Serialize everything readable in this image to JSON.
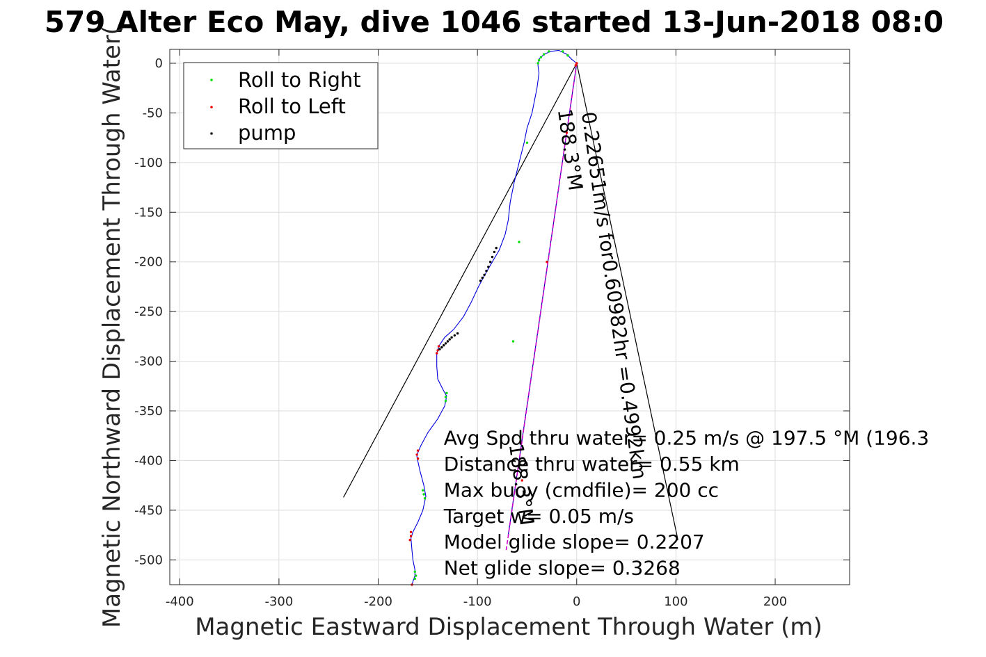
{
  "chart_data": {
    "type": "line",
    "title": "579 Alter Eco May, dive 1046 started 13-Jun-2018 08:0",
    "xlabel": "Magnetic Eastward Displacement Through Water (m)",
    "ylabel": "Magnetic Northward Displacement Through Water(",
    "xlim": [
      -410,
      275
    ],
    "ylim": [
      -525,
      14
    ],
    "xticks": [
      -400,
      -300,
      -200,
      -100,
      0,
      100,
      200
    ],
    "xtick_labels": [
      "-400",
      "-300",
      "-200",
      "-100",
      "0",
      "100",
      "200"
    ],
    "yticks": [
      0,
      -50,
      -100,
      -150,
      -200,
      -250,
      -300,
      -350,
      -400,
      -450,
      -500
    ],
    "ytick_labels": [
      "0",
      "-50",
      "-100",
      "-150",
      "-200",
      "-250",
      "-300",
      "-350",
      "-400",
      "-450",
      "-500"
    ],
    "grid": true,
    "legend": {
      "placement": "top-left",
      "entries": [
        {
          "label": "Roll to Right",
          "color": "#00dd00"
        },
        {
          "label": "Roll to Left",
          "color": "#ee0000"
        },
        {
          "label": "pump",
          "color": "#000000"
        }
      ]
    },
    "track": {
      "color": "#0000dd",
      "points": [
        [
          0,
          0
        ],
        [
          -5,
          4
        ],
        [
          -10,
          9
        ],
        [
          -18,
          13
        ],
        [
          -26,
          12
        ],
        [
          -33,
          9
        ],
        [
          -38,
          4
        ],
        [
          -39,
          -2
        ],
        [
          -38,
          -10
        ],
        [
          -40,
          -25
        ],
        [
          -45,
          -50
        ],
        [
          -50,
          -65
        ],
        [
          -53,
          -80
        ],
        [
          -58,
          -100
        ],
        [
          -63,
          -120
        ],
        [
          -67,
          -140
        ],
        [
          -69,
          -158
        ],
        [
          -72,
          -172
        ],
        [
          -78,
          -188
        ],
        [
          -85,
          -200
        ],
        [
          -92,
          -212
        ],
        [
          -99,
          -225
        ],
        [
          -106,
          -240
        ],
        [
          -114,
          -255
        ],
        [
          -124,
          -268
        ],
        [
          -133,
          -276
        ],
        [
          -139,
          -285
        ],
        [
          -141,
          -292
        ],
        [
          -141,
          -305
        ],
        [
          -140,
          -318
        ],
        [
          -134,
          -330
        ],
        [
          -131,
          -335
        ],
        [
          -133,
          -345
        ],
        [
          -140,
          -358
        ],
        [
          -150,
          -372
        ],
        [
          -157,
          -385
        ],
        [
          -160,
          -392
        ],
        [
          -161,
          -396
        ],
        [
          -158,
          -410
        ],
        [
          -154,
          -425
        ],
        [
          -152,
          -436
        ],
        [
          -155,
          -450
        ],
        [
          -160,
          -462
        ],
        [
          -165,
          -472
        ],
        [
          -167,
          -478
        ],
        [
          -166,
          -490
        ],
        [
          -165,
          -500
        ],
        [
          -163,
          -510
        ],
        [
          -163,
          -516
        ],
        [
          -165,
          -522
        ],
        [
          -166,
          -525
        ]
      ]
    },
    "roll_right_points": [
      [
        -33,
        9
      ],
      [
        -36,
        6
      ],
      [
        -38,
        3
      ],
      [
        -39,
        0
      ],
      [
        -28,
        12
      ],
      [
        -14,
        12
      ],
      [
        -9,
        8
      ],
      [
        -131,
        -332
      ],
      [
        -132,
        -336
      ],
      [
        -132,
        -340
      ],
      [
        -155,
        -430
      ],
      [
        -154,
        -434
      ],
      [
        -153,
        -438
      ],
      [
        -163,
        -512
      ],
      [
        -162,
        -516
      ],
      [
        -163,
        -519
      ],
      [
        -64,
        -280
      ],
      [
        -58,
        -180
      ],
      [
        -50,
        -80
      ]
    ],
    "roll_left_points": [
      [
        0,
        0
      ],
      [
        -1,
        -2
      ],
      [
        -139,
        -285
      ],
      [
        -140,
        -289
      ],
      [
        -141,
        -292
      ],
      [
        -160,
        -390
      ],
      [
        -161,
        -394
      ],
      [
        -160,
        -398
      ],
      [
        -167,
        -472
      ],
      [
        -167,
        -476
      ],
      [
        -168,
        -480
      ],
      [
        -166,
        -525
      ],
      [
        -10,
        -70
      ],
      [
        -30,
        -200
      ],
      [
        -55,
        -420
      ]
    ],
    "pump_points": [
      [
        -81,
        -186
      ],
      [
        -83,
        -190
      ],
      [
        -85,
        -195
      ],
      [
        -87,
        -200
      ],
      [
        -89,
        -205
      ],
      [
        -91,
        -209
      ],
      [
        -93,
        -213
      ],
      [
        -95,
        -216
      ],
      [
        -97,
        -219
      ],
      [
        -120,
        -272
      ],
      [
        -123,
        -274
      ],
      [
        -126,
        -276
      ],
      [
        -128,
        -278
      ],
      [
        -130,
        -280
      ],
      [
        -132,
        -282
      ],
      [
        -134,
        -284
      ],
      [
        -136,
        -286
      ],
      [
        -138,
        -288
      ]
    ],
    "net_line": {
      "color": "#cc00cc",
      "points": [
        [
          0,
          0
        ],
        [
          -71,
          -490
        ]
      ]
    },
    "heading_line": {
      "color": "#0000aa",
      "points": [
        [
          0,
          0
        ],
        [
          -69,
          -475
        ]
      ]
    },
    "wedge_lines": [
      {
        "color": "#000000",
        "points": [
          [
            0,
            0
          ],
          [
            -235,
            -437
          ]
        ]
      },
      {
        "color": "#000000",
        "points": [
          [
            0,
            0
          ],
          [
            102,
            -480
          ]
        ]
      }
    ],
    "annotations": [
      {
        "text": "0.22651m/s for0.60982hr =0.4992km",
        "anchor": [
          5,
          -50
        ],
        "rotation_deg": 82
      },
      {
        "text": "188.3°M",
        "anchor": [
          -19,
          -47
        ],
        "rotation_deg": 82
      },
      {
        "text": "188.3°M",
        "anchor": [
          -68,
          -384
        ],
        "rotation_deg": 82
      }
    ],
    "stats": {
      "anchor": [
        -134,
        -384
      ],
      "lines": [
        "Avg Spd thru water=  0.25 m/s @ 197.5 °M (196.3",
        "Distance thru water=  0.55 km",
        "Max buoy (cmdfile)= 200 cc",
        "Target w= 0.05 m/s",
        "Model glide slope= 0.2207",
        "Net glide slope= 0.3268"
      ]
    }
  }
}
